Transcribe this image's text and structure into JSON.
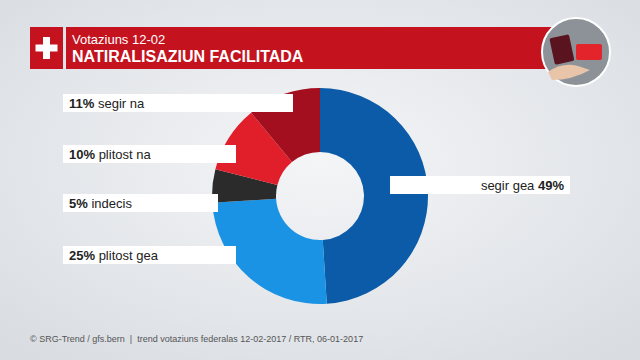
{
  "chart_data": {
    "type": "pie",
    "subtitle": "Votaziuns 12-02",
    "title": "NATIRALISAZIUN FACILITADA",
    "categories": [
      "segir gea",
      "plitost gea",
      "indecis",
      "plitost na",
      "segir na"
    ],
    "values": [
      49,
      25,
      5,
      10,
      11
    ],
    "value_labels": [
      "49%",
      "25%",
      "5%",
      "10%",
      "11%"
    ],
    "colors": [
      "#0b5ba8",
      "#1b93e4",
      "#2b2b2b",
      "#e01f2b",
      "#a30f1f"
    ],
    "data_labels": true,
    "annotations": [
      "© SRG-Trend / gfs.bern  |  trend votaziuns federalas 12-02-2017 / RTR, 06-01-2017"
    ]
  }
}
